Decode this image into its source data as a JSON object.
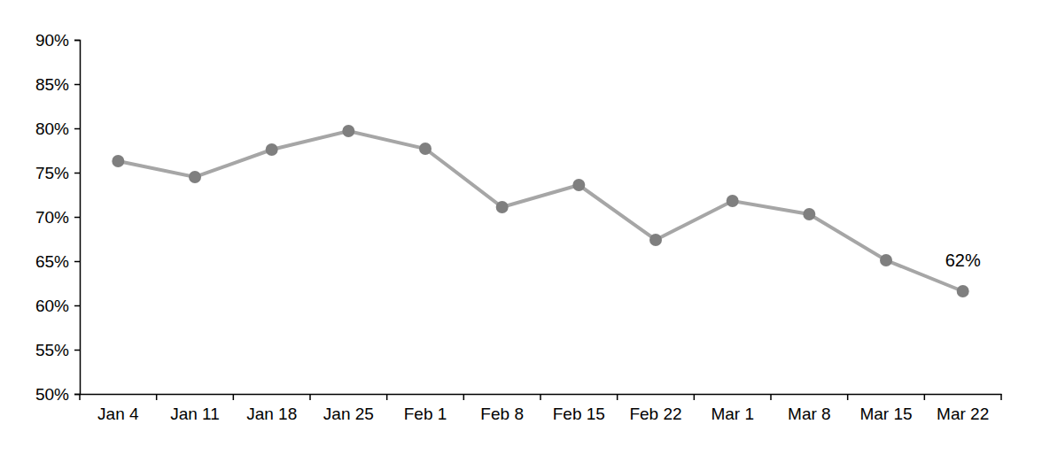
{
  "chart_data": {
    "type": "line",
    "categories": [
      "Jan 4",
      "Jan 11",
      "Jan 18",
      "Jan 25",
      "Feb 1",
      "Feb 8",
      "Feb 15",
      "Feb 22",
      "Mar 1",
      "Mar 8",
      "Mar 15",
      "Mar 22"
    ],
    "values": [
      76.3,
      74.5,
      77.6,
      79.7,
      77.7,
      71.1,
      73.6,
      67.4,
      71.8,
      70.3,
      65.1,
      61.6
    ],
    "value_labels": [
      null,
      null,
      null,
      null,
      null,
      null,
      null,
      null,
      null,
      null,
      null,
      "62%"
    ],
    "data_labels": true,
    "color": "#a6a6a6",
    "marker": "circle",
    "ylim": [
      50,
      90
    ],
    "yticks": [
      {
        "value": 50,
        "label": "50%"
      },
      {
        "value": 55,
        "label": "55%"
      },
      {
        "value": 60,
        "label": "60%"
      },
      {
        "value": 65,
        "label": "65%"
      },
      {
        "value": 70,
        "label": "70%"
      },
      {
        "value": 75,
        "label": "75%"
      },
      {
        "value": 80,
        "label": "80%"
      },
      {
        "value": 85,
        "label": "85%"
      },
      {
        "value": 90,
        "label": "90%"
      }
    ],
    "grid": false
  }
}
